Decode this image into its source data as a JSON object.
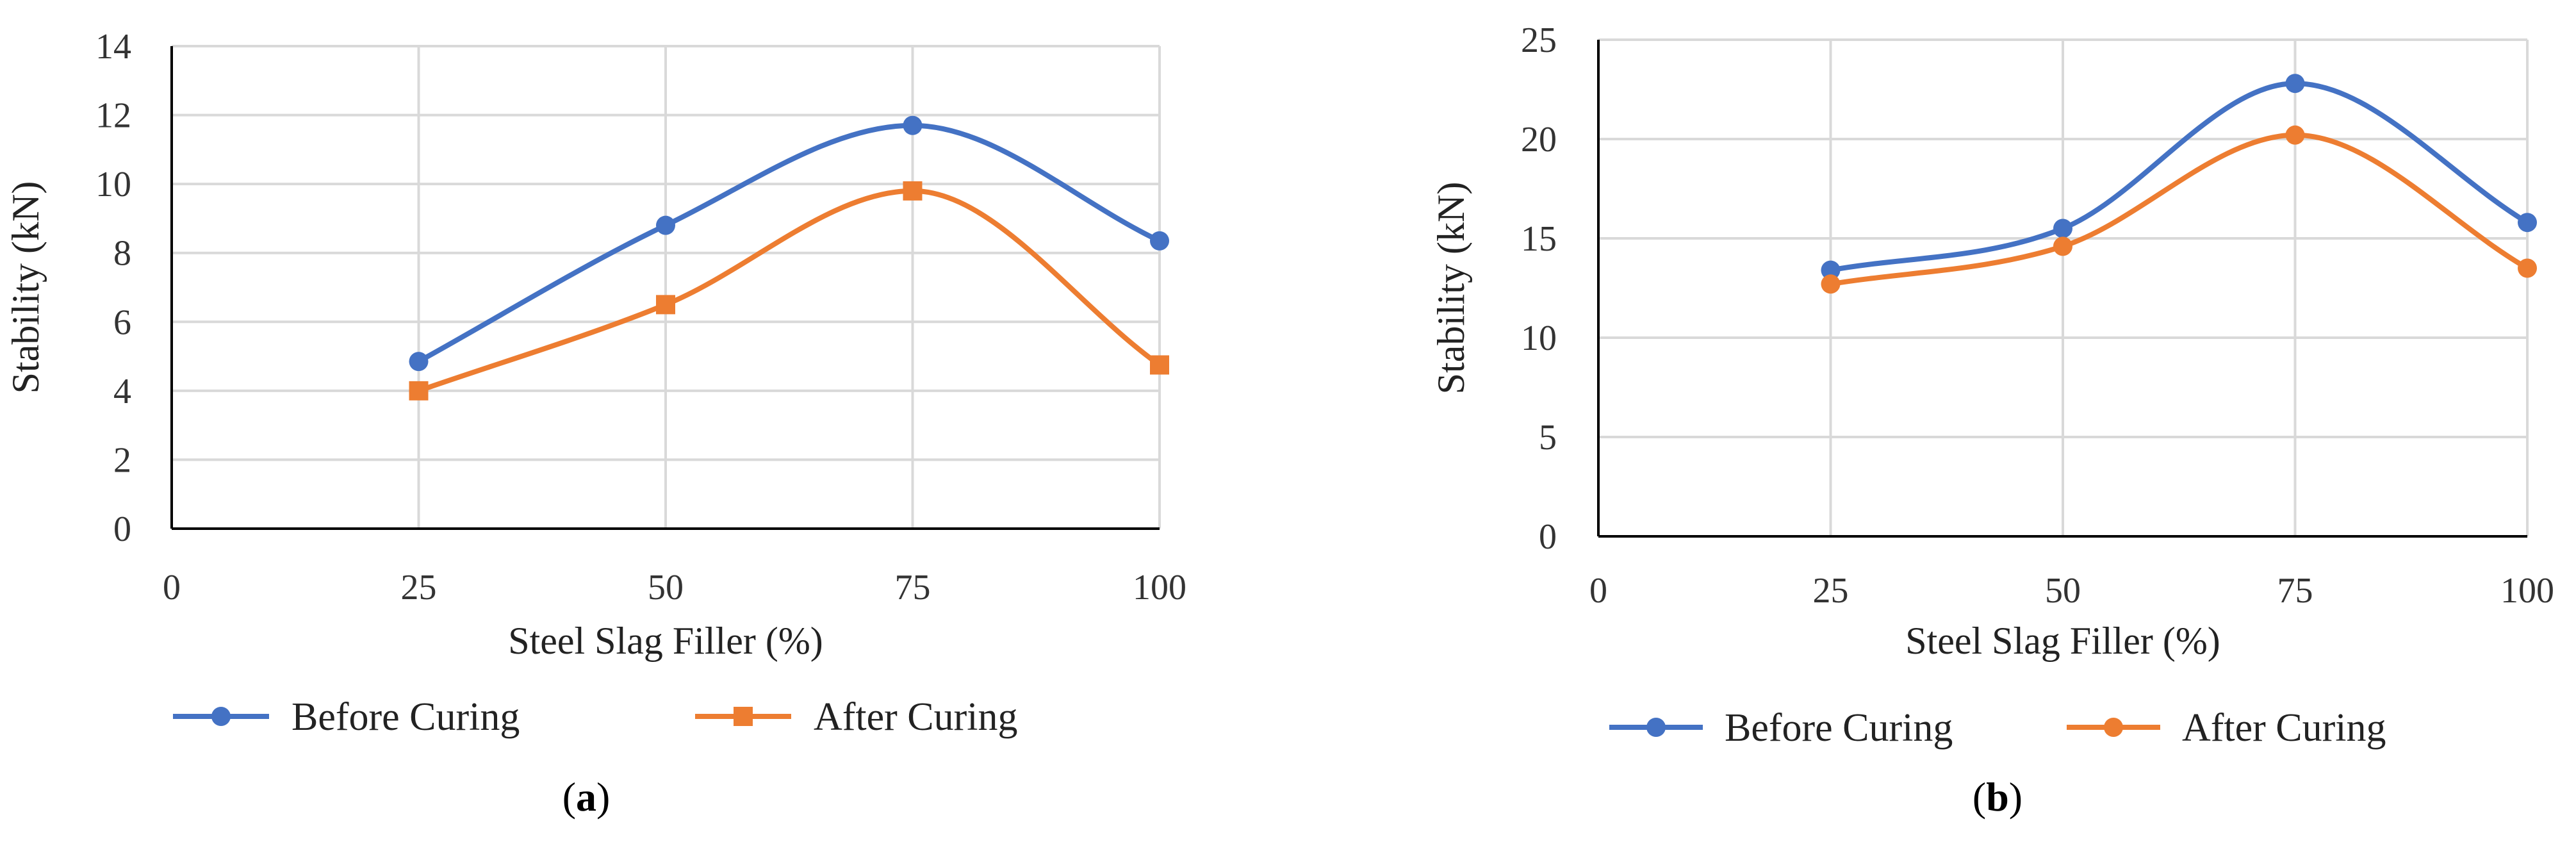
{
  "chart_data": [
    {
      "type": "line",
      "panel": "a",
      "caption_open": "(",
      "caption_letter": "a",
      "caption_close": ")",
      "xlabel": "Steel Slag Filler (%)",
      "ylabel": "Stability (kN)",
      "x_ticks": [
        0,
        25,
        50,
        75,
        100
      ],
      "y_ticks": [
        0,
        2,
        4,
        6,
        8,
        10,
        12,
        14
      ],
      "xlim": [
        0,
        100
      ],
      "ylim": [
        0,
        14
      ],
      "grid": "vertical and horizontal",
      "legend_position": "bottom",
      "x": [
        25,
        50,
        75,
        100
      ],
      "series": [
        {
          "name": "Before Curing",
          "values": [
            4.85,
            8.8,
            11.7,
            8.35
          ],
          "color": "#4472C4",
          "marker": "circle"
        },
        {
          "name": "After Curing",
          "values": [
            4.0,
            6.5,
            9.8,
            4.75
          ],
          "color": "#ED7D31",
          "marker": "square"
        }
      ]
    },
    {
      "type": "line",
      "panel": "b",
      "caption_open": "(",
      "caption_letter": "b",
      "caption_close": ")",
      "xlabel": "Steel Slag Filler (%)",
      "ylabel": "Stability (kN)",
      "x_ticks": [
        0,
        25,
        50,
        75,
        100
      ],
      "y_ticks": [
        0,
        5,
        10,
        15,
        20,
        25
      ],
      "xlim": [
        0,
        100
      ],
      "ylim": [
        0,
        25
      ],
      "grid": "vertical and horizontal",
      "legend_position": "bottom",
      "x": [
        25,
        50,
        75,
        100
      ],
      "series": [
        {
          "name": "Before Curing",
          "values": [
            13.4,
            15.5,
            22.8,
            15.8
          ],
          "color": "#4472C4",
          "marker": "circle"
        },
        {
          "name": "After Curing",
          "values": [
            12.7,
            14.6,
            20.2,
            13.5
          ],
          "color": "#ED7D31",
          "marker": "circle"
        }
      ]
    }
  ]
}
